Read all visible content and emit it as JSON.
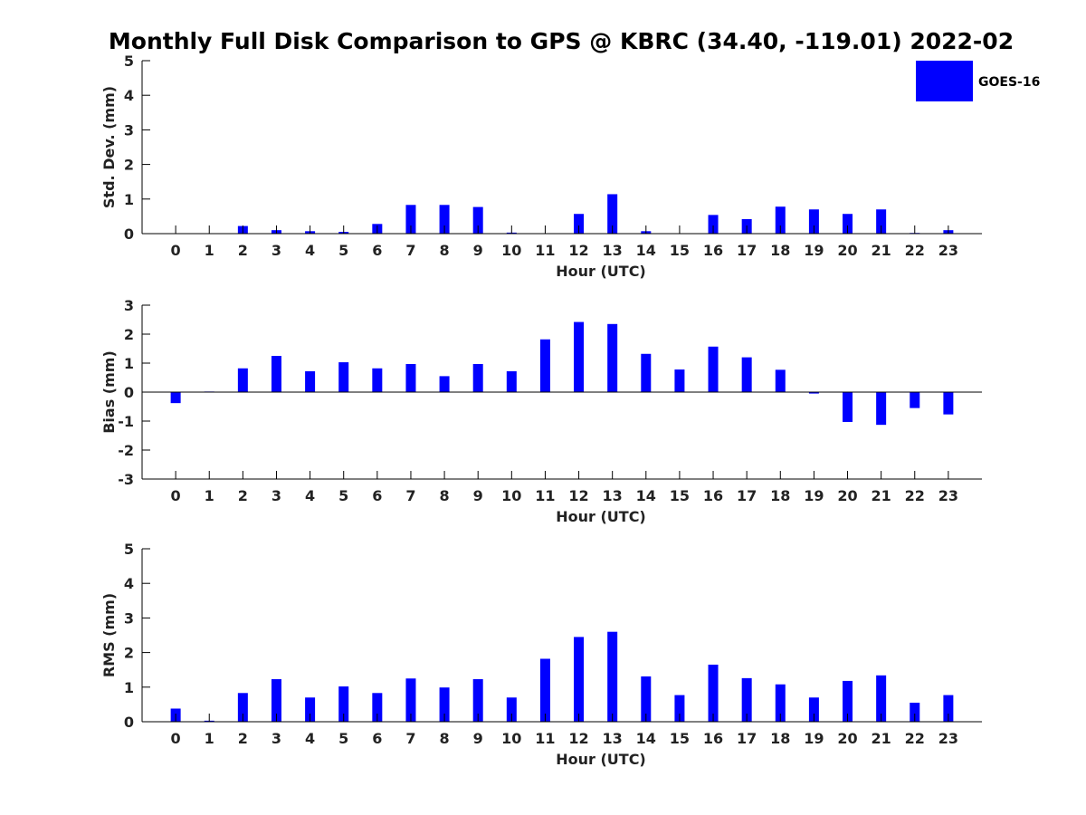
{
  "chart_data": {
    "title": "Monthly Full Disk Comparison to GPS @ KBRC (34.40, -119.01) 2022-02",
    "legend": {
      "label": "GOES-16",
      "color": "#0000ff",
      "placement": "top-right"
    },
    "bar_color": "#0000ff",
    "panels": [
      {
        "type": "bar",
        "id": "std",
        "xlabel": "Hour (UTC)",
        "ylabel": "Std. Dev. (mm)",
        "ylim": [
          0,
          5
        ],
        "yticks": [
          "0",
          "1",
          "2",
          "3",
          "4",
          "5"
        ],
        "categories": [
          "0",
          "1",
          "2",
          "3",
          "4",
          "5",
          "6",
          "7",
          "8",
          "9",
          "10",
          "11",
          "12",
          "13",
          "14",
          "15",
          "16",
          "17",
          "18",
          "19",
          "20",
          "21",
          "22",
          "23"
        ],
        "values": [
          0,
          0,
          0.22,
          0.1,
          0.07,
          0.05,
          0.28,
          0.83,
          0.83,
          0.77,
          0.03,
          0,
          0.57,
          1.14,
          0.07,
          0,
          0.54,
          0.42,
          0.78,
          0.7,
          0.57,
          0.7,
          0.02,
          0.1
        ]
      },
      {
        "type": "bar",
        "id": "bias",
        "xlabel": "Hour (UTC)",
        "ylabel": "Bias (mm)",
        "ylim": [
          -3,
          3
        ],
        "yticks": [
          "-3",
          "-2",
          "-1",
          "0",
          "1",
          "2",
          "3"
        ],
        "categories": [
          "0",
          "1",
          "2",
          "3",
          "4",
          "5",
          "6",
          "7",
          "8",
          "9",
          "10",
          "11",
          "12",
          "13",
          "14",
          "15",
          "16",
          "17",
          "18",
          "19",
          "20",
          "21",
          "22",
          "23"
        ],
        "values": [
          -0.38,
          0.02,
          0.82,
          1.25,
          0.72,
          1.03,
          0.82,
          0.97,
          0.55,
          0.97,
          0.72,
          1.82,
          2.42,
          2.35,
          1.32,
          0.78,
          1.57,
          1.2,
          0.77,
          -0.05,
          -1.03,
          -1.13,
          -0.55,
          -0.77
        ]
      },
      {
        "type": "bar",
        "id": "rms",
        "xlabel": "Hour (UTC)",
        "ylabel": "RMS (mm)",
        "ylim": [
          0,
          5
        ],
        "yticks": [
          "0",
          "1",
          "2",
          "3",
          "4",
          "5"
        ],
        "categories": [
          "0",
          "1",
          "2",
          "3",
          "4",
          "5",
          "6",
          "7",
          "8",
          "9",
          "10",
          "11",
          "12",
          "13",
          "14",
          "15",
          "16",
          "17",
          "18",
          "19",
          "20",
          "21",
          "22",
          "23"
        ],
        "values": [
          0.38,
          0.03,
          0.83,
          1.23,
          0.7,
          1.02,
          0.83,
          1.25,
          0.99,
          1.23,
          0.7,
          1.82,
          2.45,
          2.6,
          1.31,
          0.77,
          1.65,
          1.26,
          1.08,
          0.7,
          1.18,
          1.34,
          0.55,
          0.77
        ]
      }
    ]
  }
}
